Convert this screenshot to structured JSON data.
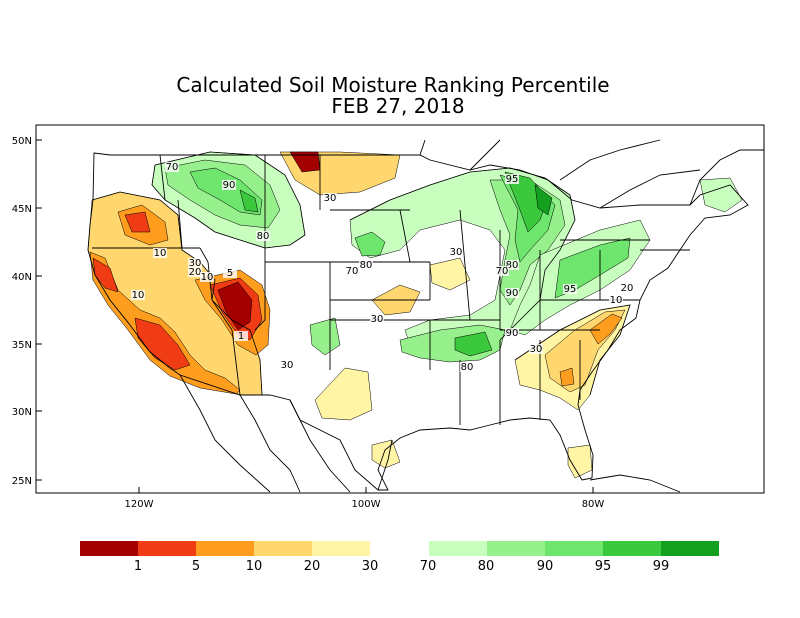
{
  "title": {
    "line1": "Calculated Soil Moisture Ranking Percentile",
    "line2": "FEB 27, 2018"
  },
  "axes": {
    "lat_ticks": [
      "50N",
      "45N",
      "40N",
      "35N",
      "30N",
      "25N"
    ],
    "lon_ticks": [
      "120W",
      "100W",
      "80W"
    ]
  },
  "colors": {
    "dry_1": "#a50000",
    "dry_5": "#f03c14",
    "dry_10": "#ff9d1e",
    "dry_20": "#ffd76e",
    "dry_30": "#fff5a5",
    "wet_70": "#c8ffbe",
    "wet_80": "#96f08c",
    "wet_90": "#6ee66e",
    "wet_95": "#3cc83c",
    "wet_99": "#14a01e"
  },
  "legend": {
    "labels": [
      "1",
      "5",
      "10",
      "20",
      "30",
      "70",
      "80",
      "90",
      "95",
      "99"
    ]
  },
  "contour_labels": [
    {
      "text": "70"
    },
    {
      "text": "90"
    },
    {
      "text": "80"
    },
    {
      "text": "30"
    },
    {
      "text": "10"
    },
    {
      "text": "30"
    },
    {
      "text": "20"
    },
    {
      "text": "10"
    },
    {
      "text": "5"
    },
    {
      "text": "10"
    },
    {
      "text": "1"
    },
    {
      "text": "30"
    },
    {
      "text": "70"
    },
    {
      "text": "80"
    },
    {
      "text": "30"
    },
    {
      "text": "30"
    },
    {
      "text": "95"
    },
    {
      "text": "80"
    },
    {
      "text": "70"
    },
    {
      "text": "90"
    },
    {
      "text": "95"
    },
    {
      "text": "10"
    },
    {
      "text": "20"
    },
    {
      "text": "90"
    },
    {
      "text": "30"
    },
    {
      "text": "80"
    }
  ]
}
